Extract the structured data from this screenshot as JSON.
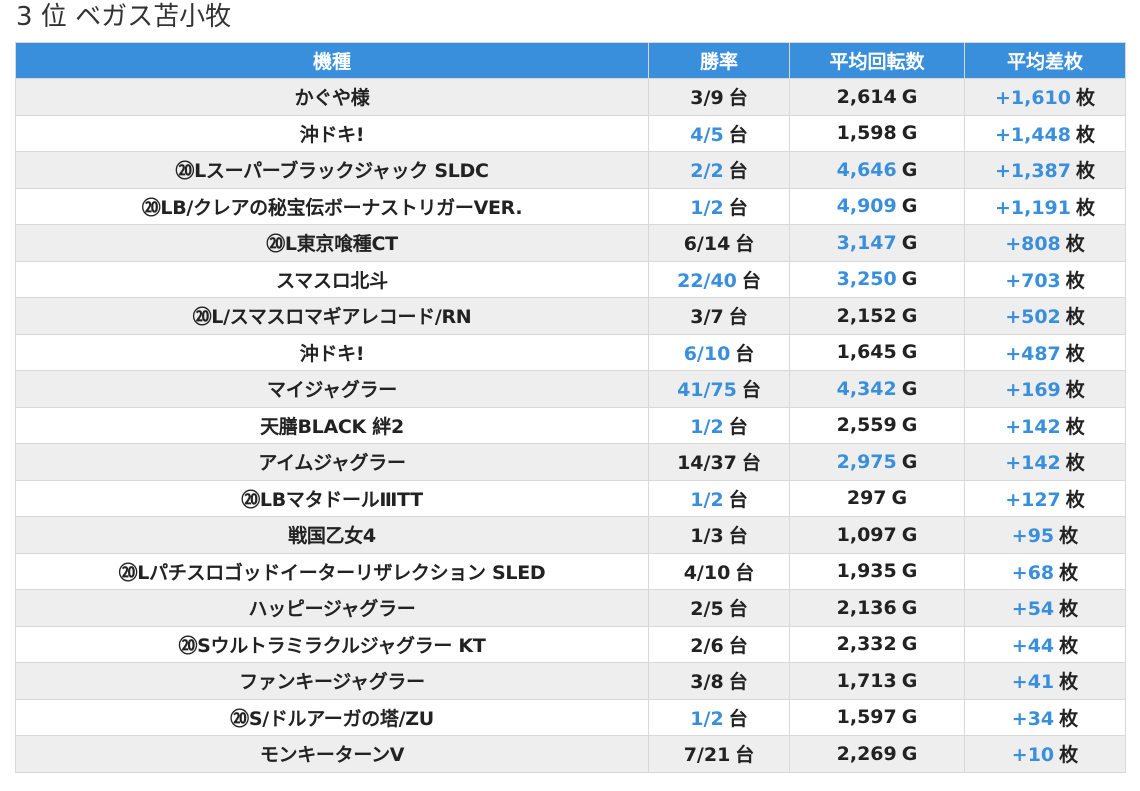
{
  "page": {
    "title": "3 位 ベガス苫小牧"
  },
  "table": {
    "headers": {
      "name": "機種",
      "rate": "勝率",
      "spin": "平均回転数",
      "diff": "平均差枚"
    },
    "colors": {
      "header_bg": "#3a8fdd",
      "highlight_text": "#3a8fdd",
      "row_alt_bg": "#eeeeee"
    },
    "rows": [
      {
        "name": "かぐや様",
        "rate": "3/9",
        "rate_unit": "台",
        "rate_hl": false,
        "spin": "2,614",
        "spin_unit": "G",
        "spin_hl": false,
        "diff": "+1,610",
        "diff_unit": "枚",
        "diff_hl": true
      },
      {
        "name": "沖ドキ!",
        "rate": "4/5",
        "rate_unit": "台",
        "rate_hl": true,
        "spin": "1,598",
        "spin_unit": "G",
        "spin_hl": false,
        "diff": "+1,448",
        "diff_unit": "枚",
        "diff_hl": true
      },
      {
        "name": "⑳Lスーパーブラックジャック SLDC",
        "rate": "2/2",
        "rate_unit": "台",
        "rate_hl": true,
        "spin": "4,646",
        "spin_unit": "G",
        "spin_hl": true,
        "diff": "+1,387",
        "diff_unit": "枚",
        "diff_hl": true
      },
      {
        "name": "⑳LB/クレアの秘宝伝ボーナストリガーVER.",
        "rate": "1/2",
        "rate_unit": "台",
        "rate_hl": true,
        "spin": "4,909",
        "spin_unit": "G",
        "spin_hl": true,
        "diff": "+1,191",
        "diff_unit": "枚",
        "diff_hl": true
      },
      {
        "name": "⑳L東京喰種CT",
        "rate": "6/14",
        "rate_unit": "台",
        "rate_hl": false,
        "spin": "3,147",
        "spin_unit": "G",
        "spin_hl": true,
        "diff": "+808",
        "diff_unit": "枚",
        "diff_hl": true
      },
      {
        "name": "スマスロ北斗",
        "rate": "22/40",
        "rate_unit": "台",
        "rate_hl": true,
        "spin": "3,250",
        "spin_unit": "G",
        "spin_hl": true,
        "diff": "+703",
        "diff_unit": "枚",
        "diff_hl": true
      },
      {
        "name": "⑳L/スマスロマギアレコード/RN",
        "rate": "3/7",
        "rate_unit": "台",
        "rate_hl": false,
        "spin": "2,152",
        "spin_unit": "G",
        "spin_hl": false,
        "diff": "+502",
        "diff_unit": "枚",
        "diff_hl": true
      },
      {
        "name": "沖ドキ!",
        "rate": "6/10",
        "rate_unit": "台",
        "rate_hl": true,
        "spin": "1,645",
        "spin_unit": "G",
        "spin_hl": false,
        "diff": "+487",
        "diff_unit": "枚",
        "diff_hl": true
      },
      {
        "name": "マイジャグラー",
        "rate": "41/75",
        "rate_unit": "台",
        "rate_hl": true,
        "spin": "4,342",
        "spin_unit": "G",
        "spin_hl": true,
        "diff": "+169",
        "diff_unit": "枚",
        "diff_hl": true
      },
      {
        "name": "天膳BLACK 絆2",
        "rate": "1/2",
        "rate_unit": "台",
        "rate_hl": true,
        "spin": "2,559",
        "spin_unit": "G",
        "spin_hl": false,
        "diff": "+142",
        "diff_unit": "枚",
        "diff_hl": true
      },
      {
        "name": "アイムジャグラー",
        "rate": "14/37",
        "rate_unit": "台",
        "rate_hl": false,
        "spin": "2,975",
        "spin_unit": "G",
        "spin_hl": true,
        "diff": "+142",
        "diff_unit": "枚",
        "diff_hl": true
      },
      {
        "name": "⑳LBマタドールⅢTT",
        "rate": "1/2",
        "rate_unit": "台",
        "rate_hl": true,
        "spin": "297",
        "spin_unit": "G",
        "spin_hl": false,
        "diff": "+127",
        "diff_unit": "枚",
        "diff_hl": true
      },
      {
        "name": "戦国乙女4",
        "rate": "1/3",
        "rate_unit": "台",
        "rate_hl": false,
        "spin": "1,097",
        "spin_unit": "G",
        "spin_hl": false,
        "diff": "+95",
        "diff_unit": "枚",
        "diff_hl": true
      },
      {
        "name": "⑳Lパチスロゴッドイーターリザレクション SLED",
        "rate": "4/10",
        "rate_unit": "台",
        "rate_hl": false,
        "spin": "1,935",
        "spin_unit": "G",
        "spin_hl": false,
        "diff": "+68",
        "diff_unit": "枚",
        "diff_hl": true
      },
      {
        "name": "ハッピージャグラー",
        "rate": "2/5",
        "rate_unit": "台",
        "rate_hl": false,
        "spin": "2,136",
        "spin_unit": "G",
        "spin_hl": false,
        "diff": "+54",
        "diff_unit": "枚",
        "diff_hl": true
      },
      {
        "name": "⑳Sウルトラミラクルジャグラー KT",
        "rate": "2/6",
        "rate_unit": "台",
        "rate_hl": false,
        "spin": "2,332",
        "spin_unit": "G",
        "spin_hl": false,
        "diff": "+44",
        "diff_unit": "枚",
        "diff_hl": true
      },
      {
        "name": "ファンキージャグラー",
        "rate": "3/8",
        "rate_unit": "台",
        "rate_hl": false,
        "spin": "1,713",
        "spin_unit": "G",
        "spin_hl": false,
        "diff": "+41",
        "diff_unit": "枚",
        "diff_hl": true
      },
      {
        "name": "⑳S/ドルアーガの塔/ZU",
        "rate": "1/2",
        "rate_unit": "台",
        "rate_hl": true,
        "spin": "1,597",
        "spin_unit": "G",
        "spin_hl": false,
        "diff": "+34",
        "diff_unit": "枚",
        "diff_hl": true
      },
      {
        "name": "モンキーターンV",
        "rate": "7/21",
        "rate_unit": "台",
        "rate_hl": false,
        "spin": "2,269",
        "spin_unit": "G",
        "spin_hl": false,
        "diff": "+10",
        "diff_unit": "枚",
        "diff_hl": true
      }
    ]
  }
}
